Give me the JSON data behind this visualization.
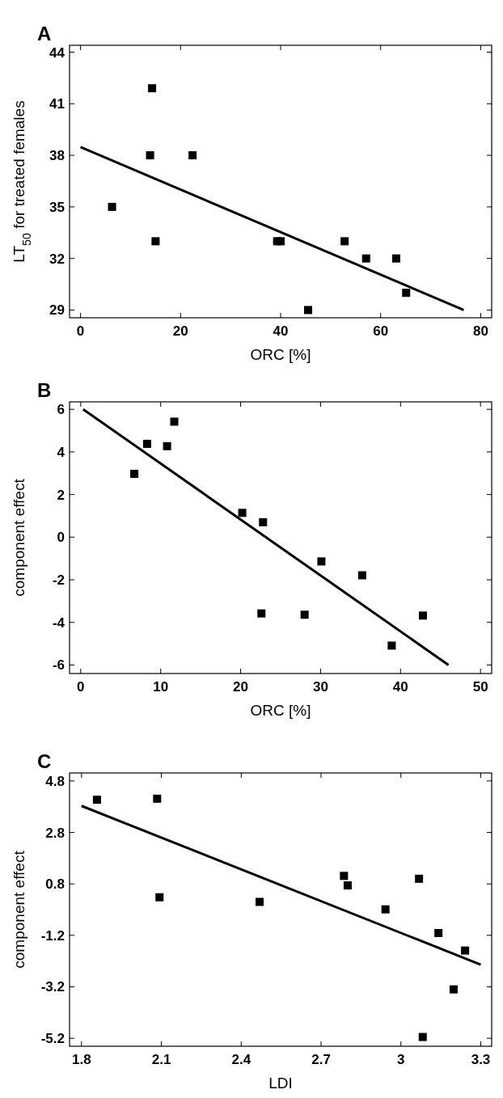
{
  "chart_data": [
    {
      "type": "scatter",
      "title": "A",
      "xlabel": "ORC [%]",
      "ylabel": "LT$_{50}$ for treated females",
      "xlim": [
        -2.2,
        82.2
      ],
      "ylim": [
        28.55,
        44.4
      ],
      "xticks": [
        0,
        20,
        40,
        60,
        80
      ],
      "yticks": [
        29,
        32,
        35,
        38,
        41,
        44
      ],
      "series": [
        {
          "marker": "square",
          "color": "#000000",
          "x": [
            6.3,
            14.3,
            13.9,
            22.4,
            15.0,
            39.3,
            40.0,
            45.5,
            52.8,
            57.1,
            63.1,
            65.1
          ],
          "values": [
            35.0,
            41.9,
            38.0,
            38.0,
            33.0,
            33.0,
            33.0,
            29.0,
            33.0,
            32.0,
            32.0,
            30.0
          ]
        },
        {
          "type": "line",
          "color": "#000000",
          "x": [
            0,
            76.6
          ],
          "values": [
            38.48,
            29.0
          ]
        }
      ]
    },
    {
      "type": "scatter",
      "title": "B",
      "xlabel": "ORC [%]",
      "ylabel": "component effect",
      "xlim": [
        -1.4,
        51.4
      ],
      "ylim": [
        -6.4,
        6.35
      ],
      "xticks": [
        0,
        10,
        20,
        30,
        40,
        50
      ],
      "yticks": [
        -6,
        -4,
        -2,
        0,
        2,
        4,
        6
      ],
      "series": [
        {
          "marker": "square",
          "color": "#000000",
          "x": [
            6.7,
            8.3,
            10.8,
            11.7,
            20.2,
            22.8,
            22.6,
            28.0,
            30.1,
            35.2,
            38.9,
            42.8
          ],
          "values": [
            2.97,
            4.38,
            4.27,
            5.42,
            1.14,
            0.7,
            -3.58,
            -3.64,
            -1.14,
            -1.79,
            -5.09,
            -3.68
          ]
        },
        {
          "type": "line",
          "color": "#000000",
          "x": [
            0.3,
            46.0
          ],
          "values": [
            6.0,
            -6.0
          ]
        }
      ]
    },
    {
      "type": "scatter",
      "title": "C",
      "xlabel": "LDI",
      "ylabel": "component effect",
      "xlim": [
        1.755,
        3.341
      ],
      "ylim": [
        -5.51,
        5.11
      ],
      "xticks": [
        1.8,
        2.1,
        2.4,
        2.7,
        3,
        3.3
      ],
      "yticks": [
        -5.2,
        -3.2,
        -1.2,
        0.8,
        2.8,
        4.8
      ],
      "series": [
        {
          "marker": "square",
          "color": "#000000",
          "x": [
            1.858,
            2.084,
            2.093,
            2.469,
            2.786,
            2.8,
            2.942,
            3.068,
            3.082,
            3.141,
            3.198,
            3.241
          ],
          "values": [
            4.07,
            4.11,
            0.28,
            0.1,
            1.11,
            0.74,
            -0.19,
            1.0,
            -5.15,
            -1.11,
            -3.3,
            -1.79
          ]
        },
        {
          "type": "line",
          "color": "#000000",
          "x": [
            1.8,
            3.3
          ],
          "values": [
            3.83,
            -2.34
          ]
        }
      ]
    }
  ]
}
